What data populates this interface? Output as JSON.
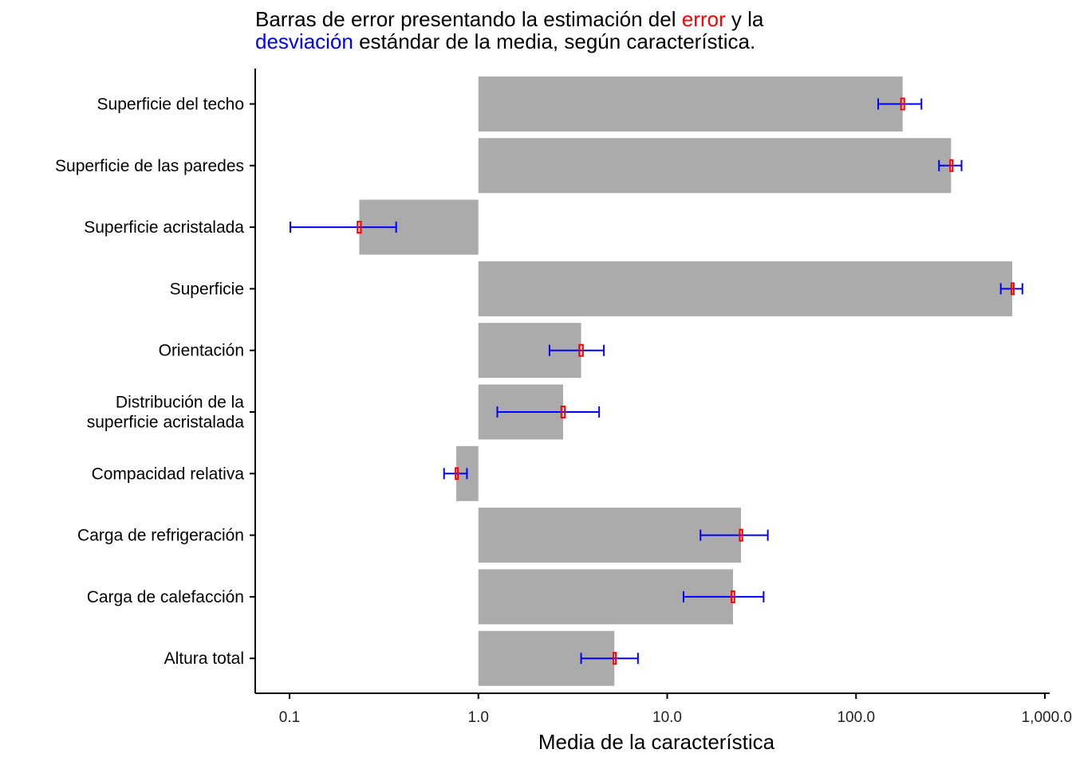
{
  "title": {
    "part1": "Barras de error presentando la estimación del ",
    "error_word": "error",
    "part2": " y la",
    "desv_word": "desviación",
    "part3": " estándar de la media, según característica."
  },
  "colors": {
    "bar": "#ababab",
    "sd": "#0000ff",
    "se": "#ff0000",
    "axis": "#000000"
  },
  "chart_data": {
    "type": "bar",
    "orientation": "horizontal",
    "x_scale": "log10",
    "bar_baseline": 1.0,
    "xlabel": "Media de la característica",
    "ylabel": "",
    "xlim": [
      0.065,
      1000
    ],
    "x_ticks": [
      0.1,
      1,
      10,
      100,
      1000
    ],
    "x_tick_labels": [
      "0.1",
      "1.0",
      "10.0",
      "100.0",
      "1,000.0"
    ],
    "categories": [
      {
        "label": [
          "Superficie del techo"
        ],
        "mean": 176.6,
        "sd_low": 131.0,
        "sd_high": 222.0,
        "se_low": 173.0,
        "se_high": 180.0
      },
      {
        "label": [
          "Superficie de las paredes"
        ],
        "mean": 318.5,
        "sd_low": 275.0,
        "sd_high": 362.0,
        "se_low": 315.0,
        "se_high": 322.0
      },
      {
        "label": [
          "Superficie acristalada"
        ],
        "mean": 0.234,
        "sd_low": 0.101,
        "sd_high": 0.367,
        "se_low": 0.229,
        "se_high": 0.239
      },
      {
        "label": [
          "Superficie"
        ],
        "mean": 671.7,
        "sd_low": 584.0,
        "sd_high": 760.0,
        "se_low": 665.0,
        "se_high": 678.0
      },
      {
        "label": [
          "Orientación"
        ],
        "mean": 3.5,
        "sd_low": 2.38,
        "sd_high": 4.62,
        "se_low": 3.42,
        "se_high": 3.58
      },
      {
        "label": [
          "Distribución de la",
          "superficie acristalada"
        ],
        "mean": 2.81,
        "sd_low": 1.26,
        "sd_high": 4.36,
        "se_low": 2.75,
        "se_high": 2.87
      },
      {
        "label": [
          "Compacidad relativa"
        ],
        "mean": 0.764,
        "sd_low": 0.658,
        "sd_high": 0.87,
        "se_low": 0.757,
        "se_high": 0.772
      },
      {
        "label": [
          "Carga de refrigeración"
        ],
        "mean": 24.59,
        "sd_low": 15.0,
        "sd_high": 34.1,
        "se_low": 24.2,
        "se_high": 25.0
      },
      {
        "label": [
          "Carga de calefacción"
        ],
        "mean": 22.31,
        "sd_low": 12.2,
        "sd_high": 32.4,
        "se_low": 21.9,
        "se_high": 22.7
      },
      {
        "label": [
          "Altura total"
        ],
        "mean": 5.25,
        "sd_low": 3.5,
        "sd_high": 7.0,
        "se_low": 5.19,
        "se_high": 5.31
      }
    ]
  }
}
